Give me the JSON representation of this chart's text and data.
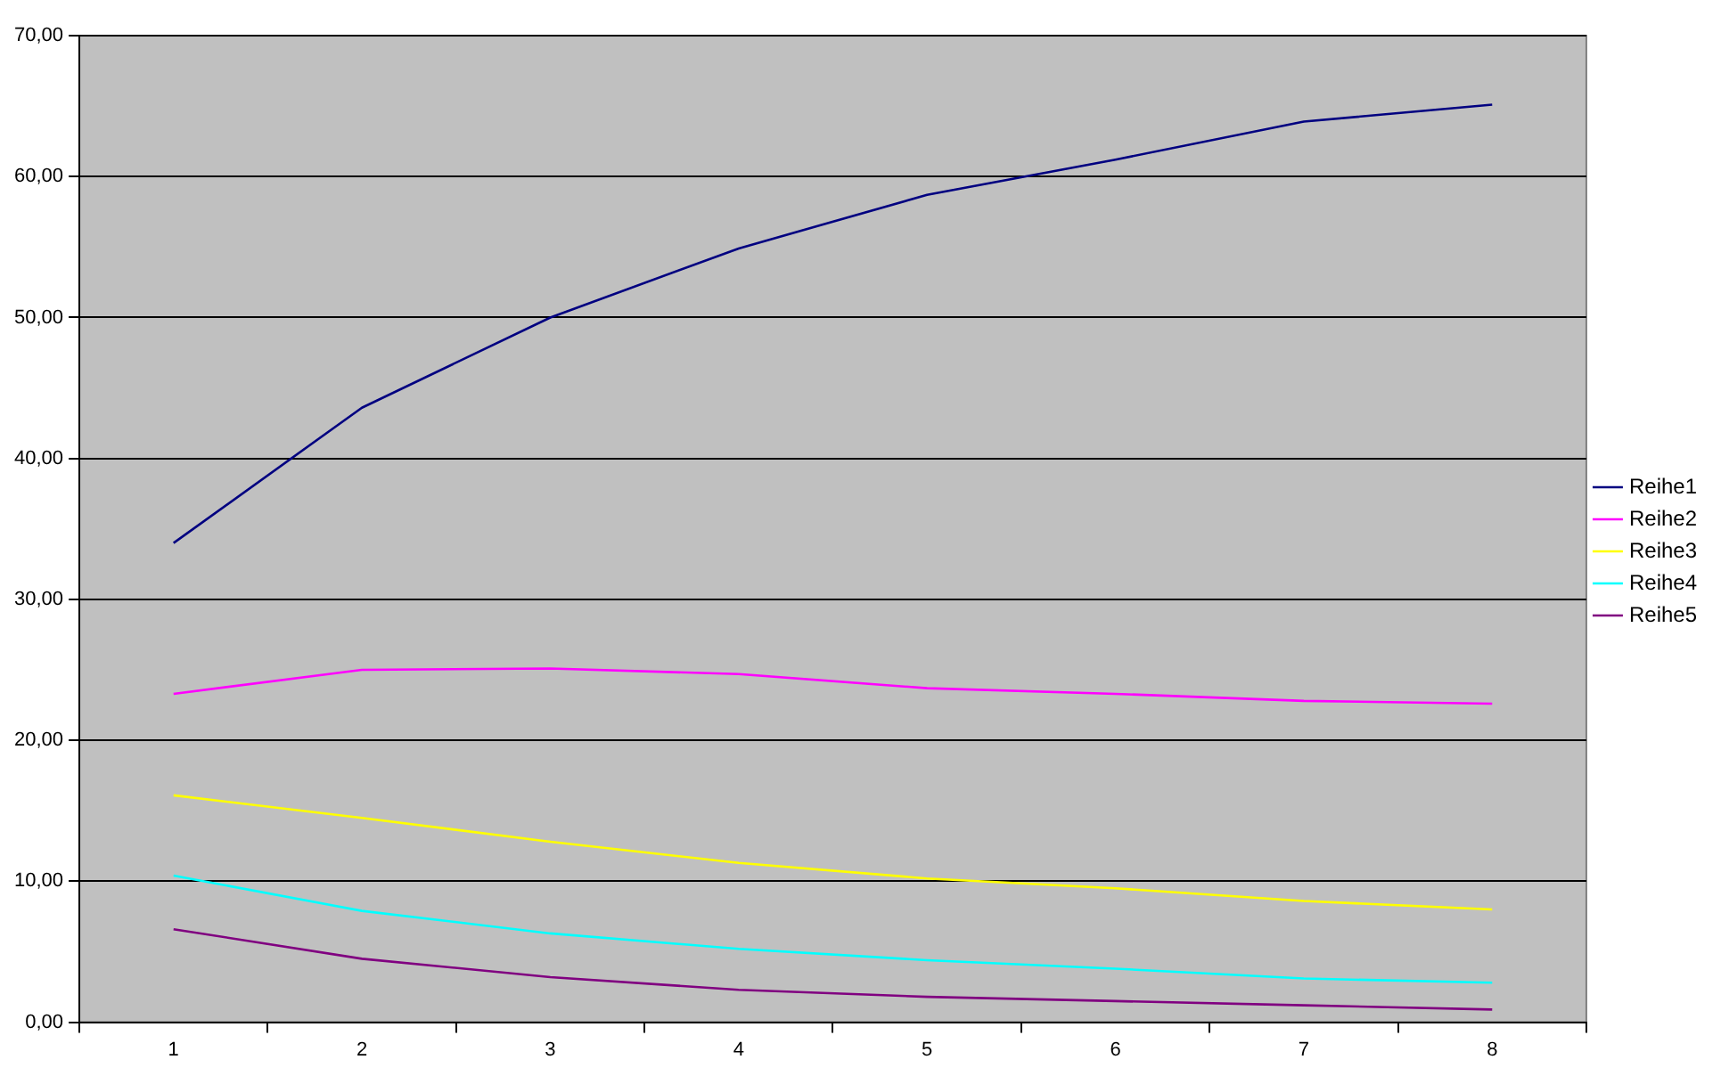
{
  "chart_data": {
    "type": "line",
    "categories": [
      "1",
      "2",
      "3",
      "4",
      "5",
      "6",
      "7",
      "8"
    ],
    "series": [
      {
        "name": "Reihe1",
        "color": "#000080",
        "values": [
          34.0,
          43.6,
          50.0,
          54.9,
          58.7,
          61.2,
          63.9,
          65.1
        ]
      },
      {
        "name": "Reihe2",
        "color": "#ff00ff",
        "values": [
          23.3,
          25.0,
          25.1,
          24.7,
          23.7,
          23.3,
          22.8,
          22.6
        ]
      },
      {
        "name": "Reihe3",
        "color": "#ffff00",
        "values": [
          16.1,
          14.5,
          12.8,
          11.3,
          10.2,
          9.5,
          8.6,
          8.0
        ]
      },
      {
        "name": "Reihe4",
        "color": "#00ffff",
        "values": [
          10.4,
          7.9,
          6.3,
          5.2,
          4.4,
          3.8,
          3.1,
          2.8
        ]
      },
      {
        "name": "Reihe5",
        "color": "#800080",
        "values": [
          6.6,
          4.5,
          3.2,
          2.3,
          1.8,
          1.5,
          1.2,
          0.9
        ]
      }
    ],
    "ylim": [
      0,
      70
    ],
    "yticks": [
      {
        "value": 0,
        "label": "0,00"
      },
      {
        "value": 10,
        "label": "10,00"
      },
      {
        "value": 20,
        "label": "20,00"
      },
      {
        "value": 30,
        "label": "30,00"
      },
      {
        "value": 40,
        "label": "40,00"
      },
      {
        "value": 50,
        "label": "50,00"
      },
      {
        "value": 60,
        "label": "60,00"
      },
      {
        "value": 70,
        "label": "70,00"
      }
    ],
    "grid": "y",
    "legend": "right",
    "marker": "none",
    "line_style": "solid"
  }
}
